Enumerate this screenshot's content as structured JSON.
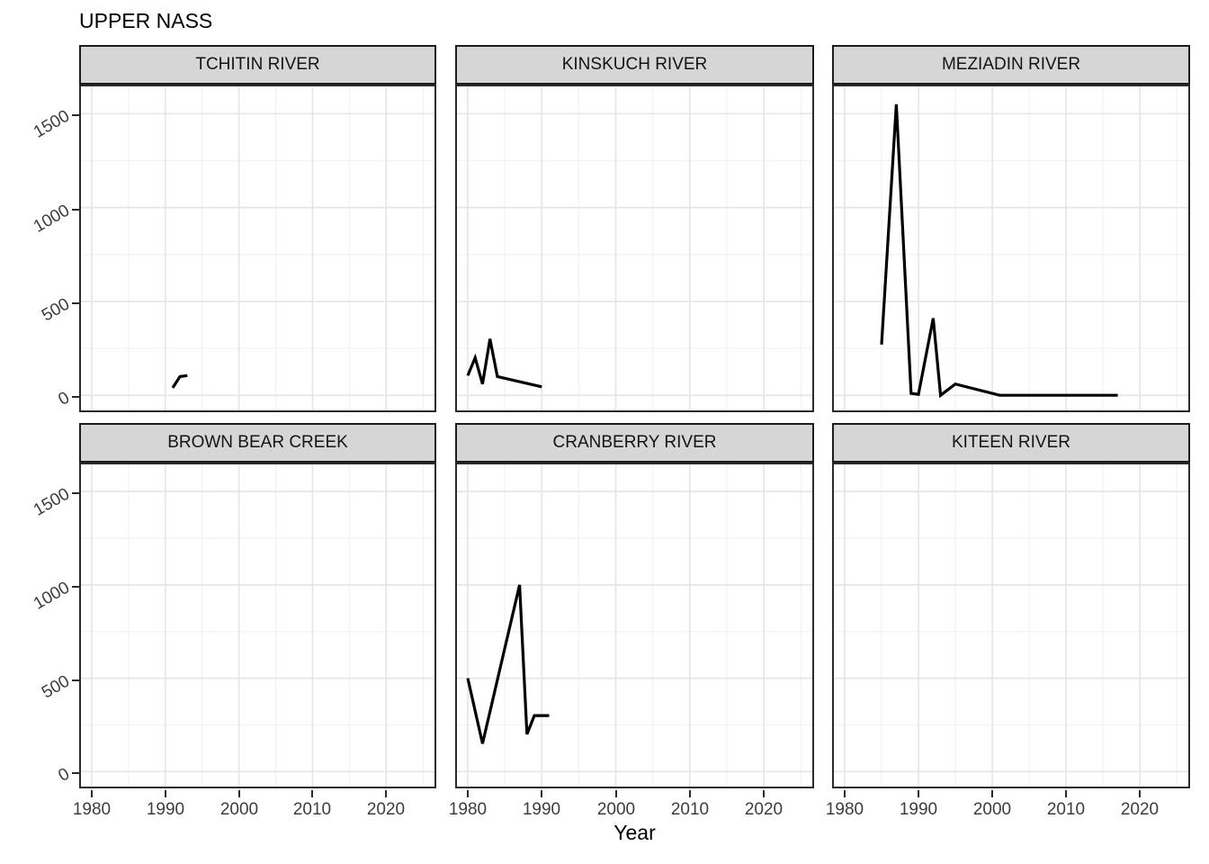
{
  "chart_data": {
    "type": "line",
    "title": "UPPER NASS",
    "xlabel": "Year",
    "ylabel": "",
    "legend": "none",
    "grid": "on",
    "x_domain": [
      1978.3,
      2026.8
    ],
    "y_domain": [
      -90,
      1655
    ],
    "x_ticks": [
      1980,
      1990,
      2000,
      2010,
      2020
    ],
    "y_ticks": [
      0,
      500,
      1000,
      1500
    ],
    "x_minor_gridlines": [
      1985,
      1995,
      2005,
      2015,
      2025
    ],
    "y_minor_gridlines": [
      250,
      750,
      1250
    ],
    "facets": [
      {
        "name": "TCHITIN RIVER",
        "row": 0,
        "col": 0,
        "points": [
          [
            1991,
            40
          ],
          [
            1992,
            100
          ],
          [
            1993,
            105
          ]
        ]
      },
      {
        "name": "KINSKUCH RIVER",
        "row": 0,
        "col": 1,
        "points": [
          [
            1980,
            105
          ],
          [
            1981,
            200
          ],
          [
            1982,
            60
          ],
          [
            1983,
            300
          ],
          [
            1984,
            100
          ],
          [
            1990,
            45
          ]
        ]
      },
      {
        "name": "MEZIADIN RIVER",
        "row": 0,
        "col": 2,
        "points": [
          [
            1985,
            270
          ],
          [
            1987,
            1550
          ],
          [
            1989,
            10
          ],
          [
            1990,
            5
          ],
          [
            1992,
            410
          ],
          [
            1993,
            0
          ],
          [
            1995,
            60
          ],
          [
            2001,
            0
          ],
          [
            2017,
            0
          ]
        ]
      },
      {
        "name": "BROWN BEAR CREEK",
        "row": 1,
        "col": 0,
        "points": []
      },
      {
        "name": "CRANBERRY RIVER",
        "row": 1,
        "col": 1,
        "points": [
          [
            1980,
            500
          ],
          [
            1982,
            150
          ],
          [
            1987,
            1000
          ],
          [
            1988,
            200
          ],
          [
            1989,
            300
          ],
          [
            1991,
            300
          ]
        ]
      },
      {
        "name": "KITEEN RIVER",
        "row": 1,
        "col": 2,
        "points": []
      }
    ],
    "colors": {
      "line": "#000000",
      "strip_bg": "#d6d6d6",
      "panel_border": "#2b2b2b",
      "grid_major": "#e6e6e6",
      "grid_minor": "#f2f2f2",
      "axis_text": "#3d3d3d",
      "title_text": "#000000"
    }
  }
}
